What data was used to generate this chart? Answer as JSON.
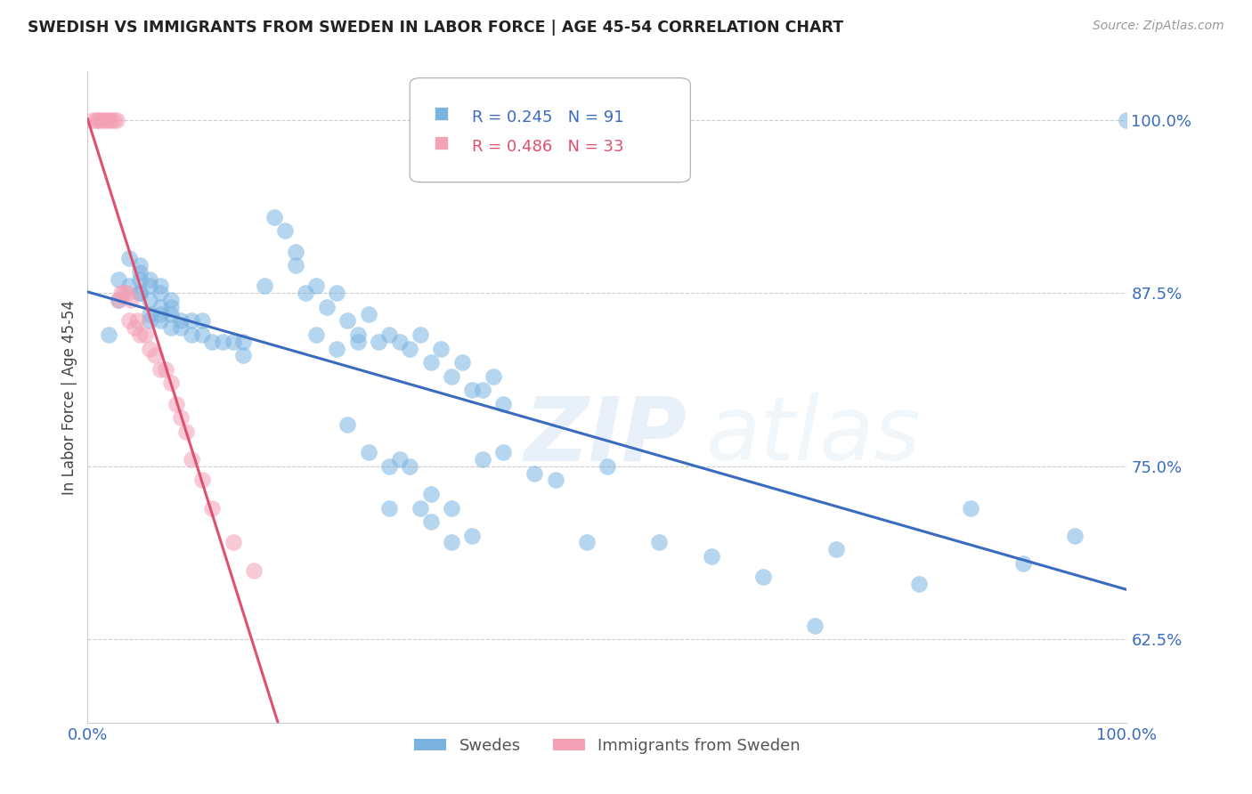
{
  "title": "SWEDISH VS IMMIGRANTS FROM SWEDEN IN LABOR FORCE | AGE 45-54 CORRELATION CHART",
  "source": "Source: ZipAtlas.com",
  "ylabel": "In Labor Force | Age 45-54",
  "xlim": [
    0.0,
    1.0
  ],
  "ylim": [
    0.565,
    1.035
  ],
  "yticks": [
    0.625,
    0.75,
    0.875,
    1.0
  ],
  "ytick_labels": [
    "62.5%",
    "75.0%",
    "87.5%",
    "100.0%"
  ],
  "xticks": [
    0.0,
    0.1,
    0.2,
    0.3,
    0.4,
    0.5,
    0.6,
    0.7,
    0.8,
    0.9,
    1.0
  ],
  "xtick_labels": [
    "0.0%",
    "",
    "",
    "",
    "",
    "",
    "",
    "",
    "",
    "",
    "100.0%"
  ],
  "blue_color": "#7ab3e0",
  "pink_color": "#f4a0b5",
  "blue_line_color": "#3a6bbf",
  "pink_line_color": "#e05070",
  "legend_blue_r": "R = 0.245",
  "legend_blue_n": "N = 91",
  "legend_pink_r": "R = 0.486",
  "legend_pink_n": "N = 33",
  "watermark_zip": "ZIP",
  "watermark_atlas": "atlas",
  "blue_scatter_x": [
    0.02,
    0.03,
    0.03,
    0.04,
    0.04,
    0.05,
    0.05,
    0.05,
    0.05,
    0.05,
    0.06,
    0.06,
    0.06,
    0.06,
    0.06,
    0.07,
    0.07,
    0.07,
    0.07,
    0.07,
    0.08,
    0.08,
    0.08,
    0.08,
    0.09,
    0.09,
    0.1,
    0.1,
    0.11,
    0.11,
    0.12,
    0.13,
    0.14,
    0.15,
    0.15,
    0.17,
    0.18,
    0.19,
    0.2,
    0.2,
    0.21,
    0.22,
    0.23,
    0.24,
    0.25,
    0.26,
    0.27,
    0.28,
    0.29,
    0.3,
    0.31,
    0.32,
    0.33,
    0.34,
    0.35,
    0.36,
    0.37,
    0.38,
    0.39,
    0.4,
    0.29,
    0.3,
    0.32,
    0.33,
    0.35,
    0.38,
    0.4,
    0.43,
    0.45,
    0.48,
    0.5,
    0.55,
    0.6,
    0.65,
    0.7,
    0.72,
    0.8,
    0.85,
    0.9,
    0.95,
    1.0,
    0.25,
    0.27,
    0.29,
    0.31,
    0.33,
    0.35,
    0.37,
    0.22,
    0.24,
    0.26
  ],
  "blue_scatter_y": [
    0.845,
    0.87,
    0.885,
    0.88,
    0.9,
    0.875,
    0.875,
    0.885,
    0.89,
    0.895,
    0.855,
    0.86,
    0.87,
    0.88,
    0.885,
    0.855,
    0.86,
    0.865,
    0.875,
    0.88,
    0.85,
    0.86,
    0.865,
    0.87,
    0.85,
    0.855,
    0.845,
    0.855,
    0.845,
    0.855,
    0.84,
    0.84,
    0.84,
    0.83,
    0.84,
    0.88,
    0.93,
    0.92,
    0.895,
    0.905,
    0.875,
    0.88,
    0.865,
    0.875,
    0.855,
    0.845,
    0.86,
    0.84,
    0.845,
    0.84,
    0.835,
    0.845,
    0.825,
    0.835,
    0.815,
    0.825,
    0.805,
    0.805,
    0.815,
    0.795,
    0.75,
    0.755,
    0.72,
    0.73,
    0.72,
    0.755,
    0.76,
    0.745,
    0.74,
    0.695,
    0.75,
    0.695,
    0.685,
    0.67,
    0.635,
    0.69,
    0.665,
    0.72,
    0.68,
    0.7,
    1.0,
    0.78,
    0.76,
    0.72,
    0.75,
    0.71,
    0.695,
    0.7,
    0.845,
    0.835,
    0.84
  ],
  "pink_scatter_x": [
    0.005,
    0.008,
    0.01,
    0.012,
    0.015,
    0.018,
    0.02,
    0.022,
    0.025,
    0.028,
    0.03,
    0.032,
    0.035,
    0.038,
    0.04,
    0.042,
    0.045,
    0.048,
    0.05,
    0.055,
    0.06,
    0.065,
    0.07,
    0.075,
    0.08,
    0.085,
    0.09,
    0.095,
    0.1,
    0.11,
    0.12,
    0.14,
    0.16
  ],
  "pink_scatter_y": [
    1.0,
    1.0,
    1.0,
    1.0,
    1.0,
    1.0,
    1.0,
    1.0,
    1.0,
    1.0,
    0.87,
    0.875,
    0.875,
    0.875,
    0.855,
    0.87,
    0.85,
    0.855,
    0.845,
    0.845,
    0.835,
    0.83,
    0.82,
    0.82,
    0.81,
    0.795,
    0.785,
    0.775,
    0.755,
    0.74,
    0.72,
    0.695,
    0.675
  ]
}
